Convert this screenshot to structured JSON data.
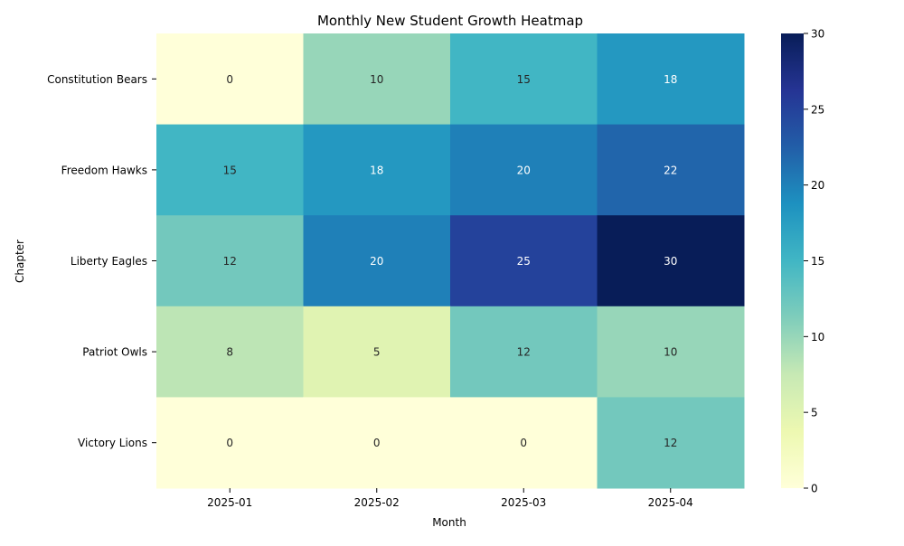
{
  "chart_data": {
    "type": "heatmap",
    "title": "Monthly New Student Growth Heatmap",
    "xlabel": "Month",
    "ylabel": "Chapter",
    "x": [
      "2025-01",
      "2025-02",
      "2025-03",
      "2025-04"
    ],
    "y": [
      "Constitution Bears",
      "Freedom Hawks",
      "Liberty Eagles",
      "Patriot Owls",
      "Victory Lions"
    ],
    "values": [
      [
        0,
        10,
        15,
        18
      ],
      [
        15,
        18,
        20,
        22
      ],
      [
        12,
        20,
        25,
        30
      ],
      [
        8,
        5,
        12,
        10
      ],
      [
        0,
        0,
        0,
        12
      ]
    ],
    "colorbar": {
      "range": [
        0,
        30
      ],
      "ticks": [
        "0",
        "5",
        "10",
        "15",
        "20",
        "25",
        "30"
      ],
      "colormap": "YlGnBu"
    },
    "grid": false
  }
}
